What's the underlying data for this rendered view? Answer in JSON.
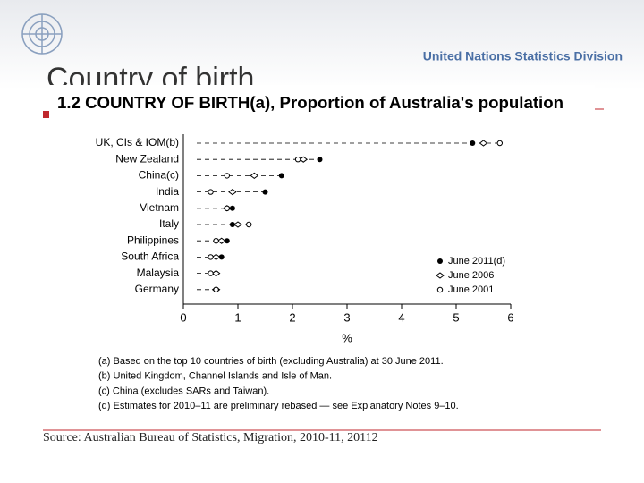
{
  "slide": {
    "title": "Country of birth",
    "organization": "United Nations Statistics Division",
    "source": "Source: Australian Bureau of Statistics, Migration, 2010-11, 20112"
  },
  "chart_data": {
    "type": "dot",
    "title": "1.2 COUNTRY OF BIRTH(a), Proportion of Australia's population",
    "categories": [
      "UK, CIs & IOM(b)",
      "New Zealand",
      "China(c)",
      "India",
      "Vietnam",
      "Italy",
      "Philippines",
      "South Africa",
      "Malaysia",
      "Germany"
    ],
    "series": [
      {
        "name": "June 2011(d)",
        "color": "#000000",
        "values": [
          5.3,
          2.5,
          1.8,
          1.5,
          0.9,
          0.9,
          0.8,
          0.7,
          0.6,
          0.6
        ]
      },
      {
        "name": "June 2006",
        "color": "#000000",
        "values": [
          5.5,
          2.2,
          1.3,
          0.9,
          0.8,
          1.0,
          0.7,
          0.6,
          0.6,
          0.6
        ]
      },
      {
        "name": "June 2001",
        "color": "#000000",
        "values": [
          5.8,
          2.1,
          0.8,
          0.5,
          0.8,
          1.2,
          0.6,
          0.5,
          0.5,
          0.6
        ]
      }
    ],
    "xlabel": "%",
    "xlim": [
      0,
      6
    ],
    "xticks": [
      0,
      1,
      2,
      3,
      4,
      5,
      6
    ],
    "legend": "lower-right",
    "footnotes": [
      "(a) Based on the top 10 countries of birth (excluding Australia) at 30 June 2011.",
      "(b) United Kingdom, Channel Islands and Isle of Man.",
      "(c) China (excludes SARs and Taiwan).",
      "(d) Estimates for 2010–11 are preliminary rebased — see Explanatory Notes 9–10."
    ]
  }
}
